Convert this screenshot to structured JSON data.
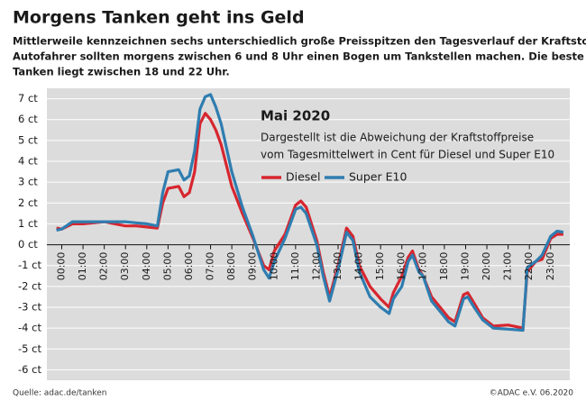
{
  "chart_data": {
    "type": "line",
    "title": "Morgens Tanken geht ins Geld",
    "subtitle": [
      "Mittlerweile kennzeichnen sechs unterschiedlich große Preisspitzen den Tagesverlauf der Kraftstoffpreise.",
      "Autofahrer sollten morgens zwischen 6 und 8 Uhr einen Bogen um Tankstellen machen. Die beste Zeit zum",
      "Tanken liegt zwischen 18 und 22 Uhr."
    ],
    "annotation_title": "Mai 2020",
    "annotation": [
      "Dargestellt ist die Abweichung der Kraftstoffpreise",
      "vom Tagesmittelwert in Cent für Diesel und Super E10"
    ],
    "source": "Quelle: adac.de/tanken",
    "copyright": "©ADAC e.V.  06.2020",
    "x": [
      -0.25,
      0,
      0.5,
      1,
      2,
      2.5,
      3,
      3.5,
      4,
      4.5,
      4.75,
      5,
      5.5,
      5.75,
      6,
      6.25,
      6.5,
      6.75,
      7,
      7.25,
      7.5,
      8,
      8.5,
      9,
      9.5,
      9.75,
      10,
      10.5,
      11,
      11.25,
      11.5,
      12,
      12.3,
      12.6,
      13,
      13.4,
      13.7,
      14,
      14.5,
      15,
      15.4,
      15.6,
      16,
      16.3,
      16.5,
      16.8,
      17,
      17.4,
      17.8,
      18.2,
      18.5,
      18.9,
      19.1,
      19.4,
      19.8,
      20.3,
      21,
      21.7,
      21.9,
      22.3,
      22.6,
      23,
      23.3,
      23.6
    ],
    "series": [
      {
        "name": "Diesel",
        "color": "#d7262f",
        "values": [
          0.8,
          0.75,
          1.0,
          1.0,
          1.1,
          1.0,
          0.9,
          0.9,
          0.85,
          0.8,
          2.0,
          2.7,
          2.8,
          2.3,
          2.5,
          3.5,
          5.8,
          6.3,
          6.0,
          5.5,
          4.8,
          2.8,
          1.5,
          0.3,
          -1.0,
          -1.2,
          -0.3,
          0.5,
          1.9,
          2.1,
          1.8,
          0.2,
          -1.3,
          -2.5,
          -1.0,
          0.8,
          0.4,
          -1.0,
          -2.0,
          -2.6,
          -3.0,
          -2.3,
          -1.5,
          -0.6,
          -0.3,
          -1.2,
          -1.5,
          -2.5,
          -3.0,
          -3.5,
          -3.7,
          -2.4,
          -2.3,
          -2.8,
          -3.5,
          -3.9,
          -3.85,
          -4.0,
          -1.3,
          -0.8,
          -0.7,
          0.3,
          0.5,
          0.5
        ]
      },
      {
        "name": "Super E10",
        "color": "#2f7db0",
        "values": [
          0.7,
          0.75,
          1.1,
          1.1,
          1.1,
          1.1,
          1.1,
          1.05,
          1.0,
          0.9,
          2.5,
          3.5,
          3.6,
          3.1,
          3.3,
          4.5,
          6.5,
          7.1,
          7.2,
          6.6,
          5.8,
          3.5,
          1.8,
          0.4,
          -1.2,
          -1.6,
          -0.8,
          0.3,
          1.7,
          1.8,
          1.5,
          0.0,
          -1.5,
          -2.7,
          -1.2,
          0.6,
          0.2,
          -1.3,
          -2.5,
          -3.0,
          -3.3,
          -2.6,
          -2.0,
          -0.8,
          -0.5,
          -1.3,
          -1.5,
          -2.7,
          -3.2,
          -3.7,
          -3.9,
          -2.6,
          -2.5,
          -3.0,
          -3.6,
          -4.0,
          -4.05,
          -4.1,
          -1.1,
          -0.8,
          -0.5,
          0.4,
          0.65,
          0.6
        ]
      }
    ],
    "xlim": [
      -0.7,
      23.9
    ],
    "ylim": [
      -6.5,
      7.5
    ],
    "xticks": [
      {
        "value": 0,
        "label": "00:00"
      },
      {
        "value": 1,
        "label": "01:00"
      },
      {
        "value": 2,
        "label": "02:00"
      },
      {
        "value": 3,
        "label": "03:00"
      },
      {
        "value": 4,
        "label": "04:00"
      },
      {
        "value": 5,
        "label": "05:00"
      },
      {
        "value": 6,
        "label": "06:00"
      },
      {
        "value": 7,
        "label": "07:00"
      },
      {
        "value": 8,
        "label": "08:00"
      },
      {
        "value": 9,
        "label": "09:00"
      },
      {
        "value": 10,
        "label": "10:00"
      },
      {
        "value": 11,
        "label": "11:00"
      },
      {
        "value": 12,
        "label": "12:00"
      },
      {
        "value": 13,
        "label": "13:00"
      },
      {
        "value": 14,
        "label": "14:00"
      },
      {
        "value": 15,
        "label": "15:00"
      },
      {
        "value": 16,
        "label": "16:00"
      },
      {
        "value": 17,
        "label": "17:00"
      },
      {
        "value": 18,
        "label": "18:00"
      },
      {
        "value": 19,
        "label": "19:00"
      },
      {
        "value": 20,
        "label": "20:00"
      },
      {
        "value": 21,
        "label": "21:00"
      },
      {
        "value": 22,
        "label": "22:00"
      },
      {
        "value": 23,
        "label": "23:00"
      }
    ],
    "yticks": [
      {
        "value": 7,
        "label": "7 ct"
      },
      {
        "value": 6,
        "label": "6 ct"
      },
      {
        "value": 5,
        "label": "5 ct"
      },
      {
        "value": 4,
        "label": "4 ct"
      },
      {
        "value": 3,
        "label": "3 ct"
      },
      {
        "value": 2,
        "label": "2 ct"
      },
      {
        "value": 1,
        "label": "1 ct"
      },
      {
        "value": 0,
        "label": "0 ct"
      },
      {
        "value": -1,
        "label": "-1 ct"
      },
      {
        "value": -2,
        "label": "-2 ct"
      },
      {
        "value": -3,
        "label": "-3 ct"
      },
      {
        "value": -4,
        "label": "-4 ct"
      },
      {
        "value": -5,
        "label": "-5 ct"
      },
      {
        "value": -6,
        "label": "-6 ct"
      }
    ],
    "grid": true
  }
}
